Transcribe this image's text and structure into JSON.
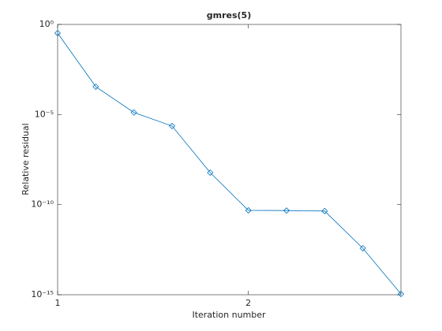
{
  "chart_data": {
    "type": "line",
    "title": "gmres(5)",
    "xlabel": "Iteration number",
    "ylabel": "Relative residual",
    "x": [
      1,
      1.2,
      1.4,
      1.6,
      1.8,
      2,
      2.2,
      2.4,
      2.6,
      2.8
    ],
    "series": [
      {
        "color": "#0072bd",
        "marker": "diamond",
        "values": [
          0.33,
          0.00035,
          1.3e-05,
          2.3e-06,
          6e-09,
          4.8e-11,
          4.7e-11,
          4.4e-11,
          3.8e-13,
          1.1e-15
        ]
      }
    ],
    "xlim": [
      1,
      2.8
    ],
    "xticks": [
      1,
      2
    ],
    "ylim": [
      1e-15,
      1
    ],
    "yscale": "log",
    "yticks": [
      {
        "value": 1e-15,
        "label": "10⁻¹⁵"
      },
      {
        "value": 1e-10,
        "label": "10⁻¹⁰"
      },
      {
        "value": 1e-05,
        "label": "10⁻⁵"
      },
      {
        "value": 1,
        "label": "10⁰"
      }
    ]
  }
}
